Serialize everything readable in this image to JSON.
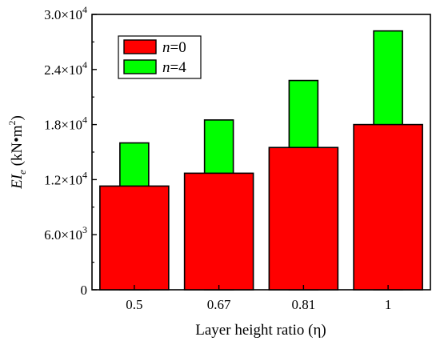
{
  "chart_data": {
    "type": "bar",
    "categories": [
      "0.5",
      "0.67",
      "0.81",
      "1"
    ],
    "series": [
      {
        "name": "n=0",
        "name_var": "n",
        "name_rest": "=0",
        "color": "#ff0000",
        "values": [
          11300,
          12700,
          15500,
          18000
        ]
      },
      {
        "name": "n=4",
        "name_var": "n",
        "name_rest": "=4",
        "color": "#00ff00",
        "values": [
          16000,
          18500,
          22800,
          28200
        ]
      }
    ],
    "ylim": [
      0,
      30000
    ],
    "yticks": [
      0,
      6000,
      12000,
      18000,
      24000,
      30000
    ],
    "ytick_labels": [
      {
        "base": "0",
        "exp": ""
      },
      {
        "base": "6.0×10",
        "exp": "3"
      },
      {
        "base": "1.2×10",
        "exp": "4"
      },
      {
        "base": "1.8×10",
        "exp": "4"
      },
      {
        "base": "2.4×10",
        "exp": "4"
      },
      {
        "base": "3.0×10",
        "exp": "4"
      }
    ],
    "xlabel": "Layer height ratio (η)",
    "ylabel": {
      "main": "EI",
      "sub": "e",
      "unit": " (kN•m",
      "unit_exp": "2",
      "unit_close": ")"
    },
    "legend_position": "top-left",
    "grid": false
  }
}
